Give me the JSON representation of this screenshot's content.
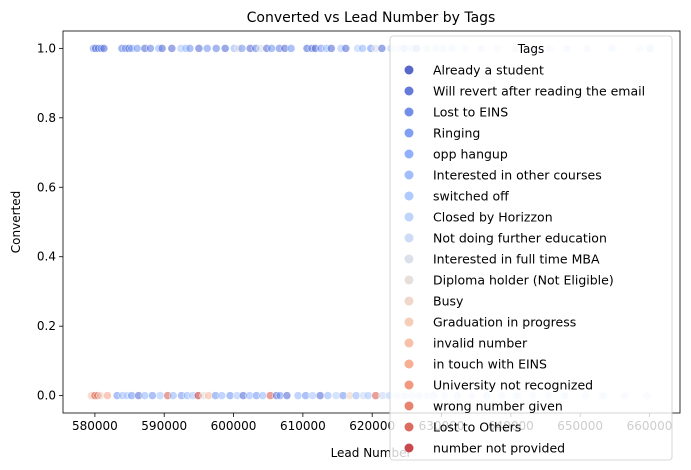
{
  "chart_data": {
    "type": "scatter",
    "title": "Converted vs Lead Number by Tags",
    "xlabel": "Lead Number",
    "ylabel": "Converted",
    "xlim": [
      575400,
      664400
    ],
    "ylim": [
      -0.05,
      1.05
    ],
    "x_ticks": [
      580000,
      590000,
      600000,
      610000,
      620000,
      630000,
      640000,
      650000,
      660000
    ],
    "x_tick_labels": [
      "580000",
      "590000",
      "600000",
      "610000",
      "620000",
      "630000",
      "640000",
      "650000",
      "660000"
    ],
    "y_ticks": [
      0.0,
      0.2,
      0.4,
      0.6,
      0.8,
      1.0
    ],
    "y_tick_labels": [
      "0.0",
      "0.2",
      "0.4",
      "0.6",
      "0.8",
      "1.0"
    ],
    "grid": false,
    "legend": {
      "title": "Tags",
      "placement": "upper-right",
      "entries": [
        {
          "name": "Already a student",
          "color": "#3b4cc0"
        },
        {
          "name": "Will revert after reading the email",
          "color": "#4a63d3"
        },
        {
          "name": "Lost to EINS",
          "color": "#5b7ae5"
        },
        {
          "name": "Ringing",
          "color": "#6c8ff1"
        },
        {
          "name": "opp hangup",
          "color": "#7ea1fa"
        },
        {
          "name": "Interested in other courses",
          "color": "#90b2fe"
        },
        {
          "name": "switched off",
          "color": "#a2c1ff"
        },
        {
          "name": "Closed by Horizzon",
          "color": "#b3cdfb"
        },
        {
          "name": "Not doing further education",
          "color": "#c4d5f3"
        },
        {
          "name": "Interested  in full time MBA",
          "color": "#d5dbe5"
        },
        {
          "name": "Diploma holder (Not Eligible)",
          "color": "#e3d9d3"
        },
        {
          "name": "Busy",
          "color": "#eed0c0"
        },
        {
          "name": "Graduation in progress",
          "color": "#f4c4ab"
        },
        {
          "name": "invalid number",
          "color": "#f7b599"
        },
        {
          "name": "in touch with EINS",
          "color": "#f5a081"
        },
        {
          "name": "University not recognized",
          "color": "#ee8669"
        },
        {
          "name": "wrong number given",
          "color": "#e36c55"
        },
        {
          "name": "Lost to Others",
          "color": "#d65244"
        },
        {
          "name": "number not provided",
          "color": "#c0282f"
        }
      ]
    },
    "series": [
      {
        "y": 1,
        "x": [
          579800,
          580100,
          580500,
          580900,
          581300,
          583900,
          584400,
          584900,
          585300,
          586100,
          587200,
          588000,
          589200,
          589700,
          591100,
          592400,
          593100,
          593700,
          595000,
          596200,
          597500,
          598800,
          600100,
          600700,
          601200,
          602400,
          603200,
          603900,
          604800,
          605500,
          606600,
          607400,
          608300,
          610600,
          611300,
          611800,
          612600,
          613400,
          614100,
          615500,
          616200,
          617900,
          618600,
          619800,
          620500,
          621400,
          622700,
          623800,
          624600,
          625700,
          626400,
          627900,
          629200,
          630200,
          631500,
          633400,
          635700,
          638100,
          640600,
          643300,
          645600,
          648100,
          651000,
          654600,
          658600,
          660100
        ],
        "tags": [
          "Ringing",
          "Will revert after reading the email",
          "Lost to EINS",
          "Ringing",
          "Will revert after reading the email",
          "Lost to EINS",
          "Ringing",
          "Will revert after reading the email",
          "opp hangup",
          "Ringing",
          "Will revert after reading the email",
          "Lost to EINS",
          "Interested in other courses",
          "Will revert after reading the email",
          "Will revert after reading the email",
          "switched off",
          "Interested in other courses",
          "Ringing",
          "Will revert after reading the email",
          "Ringing",
          "Lost to EINS",
          "Will revert after reading the email",
          "Interested in other courses",
          "Diploma holder (Not Eligible)",
          "Ringing",
          "Will revert after reading the email",
          "Lost to EINS",
          "Interested  in full time MBA",
          "Will revert after reading the email",
          "Ringing",
          "Lost to EINS",
          "Will revert after reading the email",
          "Ringing",
          "Will revert after reading the email",
          "Lost to EINS",
          "Will revert after reading the email",
          "Ringing",
          "Interested in other courses",
          "Will revert after reading the email",
          "switched off",
          "Will revert after reading the email",
          "Closed by Horizzon",
          "Interested in other courses",
          "Ringing",
          "Interested  in full time MBA",
          "Will revert after reading the email",
          "Closed by Horizzon",
          "Not doing further education",
          "Interested in other courses",
          "Closed by Horizzon",
          "Ringing",
          "Not doing further education",
          "Closed by Horizzon",
          "Not doing further education",
          "Closed by Horizzon",
          "Not doing further education",
          "Closed by Horizzon",
          "Not doing further education",
          "Not doing further education",
          "Closed by Horizzon",
          "Not doing further education",
          "Closed by Horizzon",
          "Not doing further education",
          "Closed by Horizzon",
          "Not doing further education",
          "switched off"
        ]
      },
      {
        "y": 0,
        "x": [
          579500,
          580000,
          580400,
          580800,
          581800,
          583200,
          584000,
          584600,
          585300,
          586300,
          587200,
          588300,
          589400,
          590500,
          591300,
          592500,
          593300,
          594100,
          594900,
          595700,
          596400,
          597400,
          598300,
          599500,
          600500,
          601400,
          602300,
          603300,
          604200,
          605300,
          606200,
          606700,
          607700,
          609300,
          610400,
          611400,
          612500,
          613600,
          614800,
          615800,
          616800,
          617700,
          618700,
          619400,
          620500,
          621500,
          622500,
          623600,
          624700,
          625700,
          626700,
          627900,
          628900,
          630400,
          632300,
          634400,
          636500,
          638700,
          640900,
          643200,
          645400,
          647800,
          650800,
          653300,
          656400,
          659600
        ],
        "tags": [
          "Graduation in progress",
          "Lost to Others",
          "wrong number given",
          "Busy",
          "in touch with EINS",
          "Ringing",
          "Interested in other courses",
          "switched off",
          "Ringing",
          "Will revert after reading the email",
          "Interested in other courses",
          "Ringing",
          "switched off",
          "Lost to Others",
          "Interested in other courses",
          "Ringing",
          "Interested in other courses",
          "switched off",
          "number not provided",
          "Diploma holder (Not Eligible)",
          "invalid number",
          "Ringing",
          "Interested in other courses",
          "Ringing",
          "switched off",
          "Will revert after reading the email",
          "Interested in other courses",
          "Ringing",
          "Interested in other courses",
          "Lost to Others",
          "Will revert after reading the email",
          "Ringing",
          "Will revert after reading the email",
          "Interested in other courses",
          "Ringing",
          "switched off",
          "Will revert after reading the email",
          "Interested in other courses",
          "Closed by Horizzon",
          "Ringing",
          "Busy",
          "Interested in other courses",
          "Not doing further education",
          "switched off",
          "Lost to Others",
          "Not doing further education",
          "Closed by Horizzon",
          "Not doing further education",
          "Closed by Horizzon",
          "Not doing further education",
          "Closed by Horizzon",
          "Not doing further education",
          "Closed by Horizzon",
          "Not doing further education",
          "Closed by Horizzon",
          "Not doing further education",
          "Closed by Horizzon",
          "Not doing further education",
          "Closed by Horizzon",
          "Not doing further education",
          "Not doing further education",
          "Closed by Horizzon",
          "Not doing further education",
          "Closed by Horizzon",
          "Not doing further education",
          "Not doing further education"
        ]
      }
    ]
  }
}
